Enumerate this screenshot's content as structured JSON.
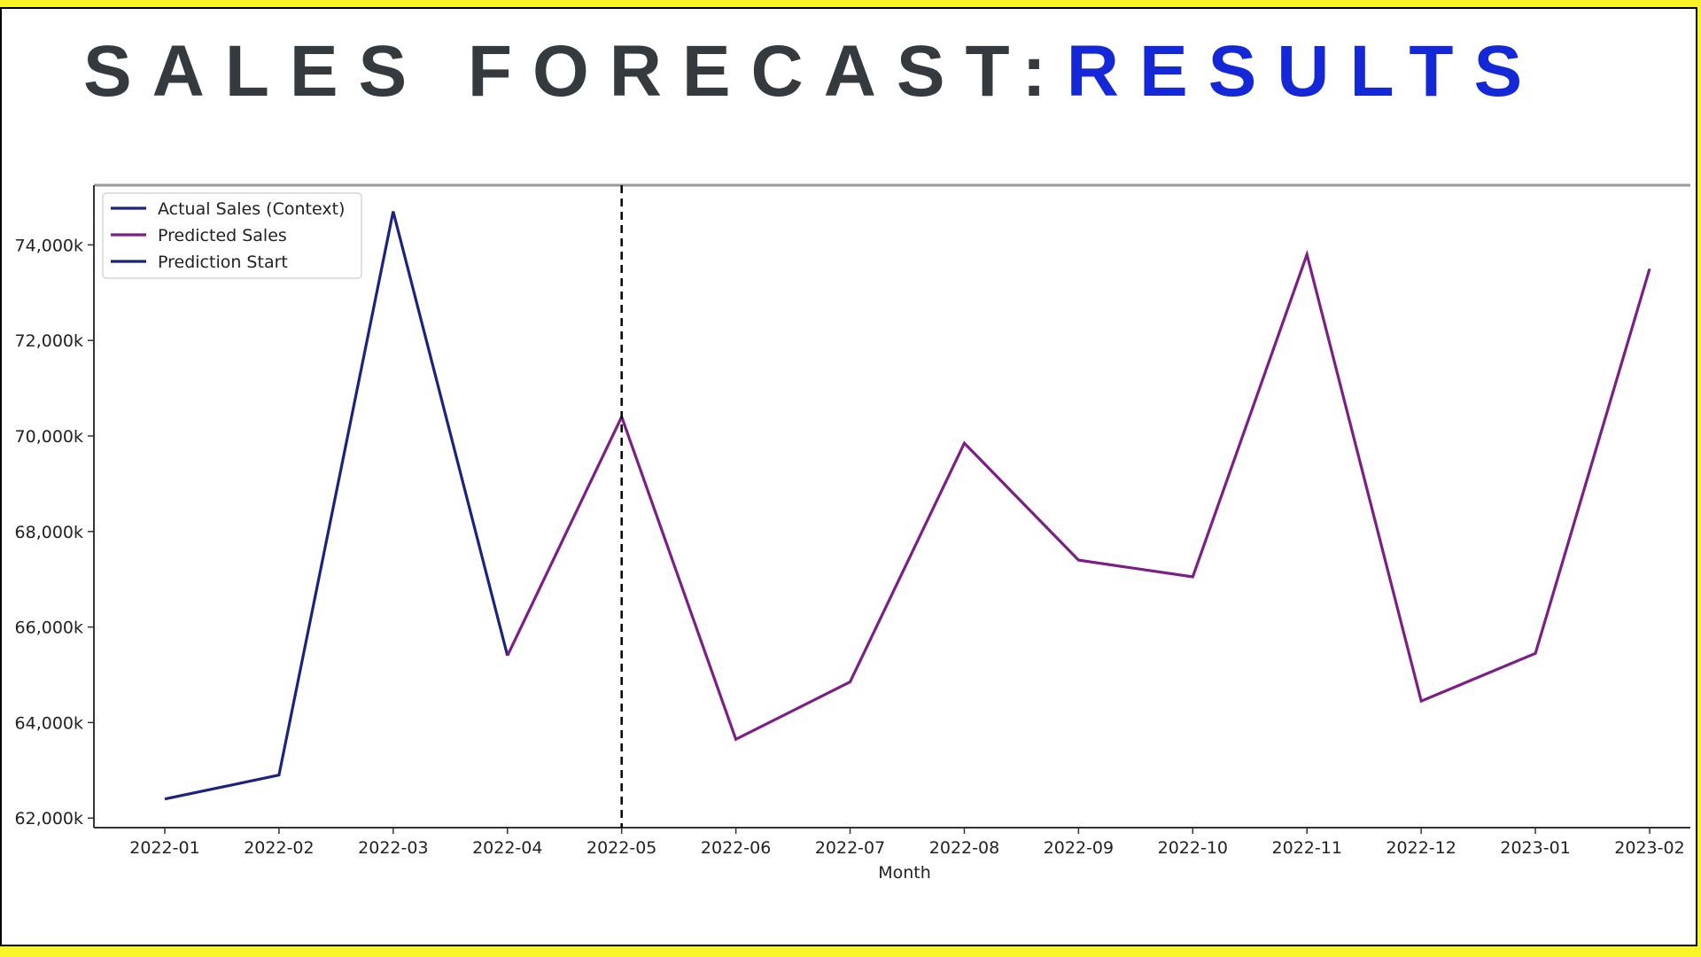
{
  "header": {
    "title_main": "SALES FORECAST:",
    "title_accent": "RESULTS"
  },
  "colors": {
    "page_background": "#f8f428",
    "title_main": "#353a3e",
    "title_accent": "#1428d8",
    "actual_series": "#1a237e",
    "predicted_series": "#7b1f86",
    "prediction_start_line": "#000000"
  },
  "chart_data": {
    "type": "line",
    "title": "",
    "xlabel": "Month",
    "ylabel": "",
    "ylim": [
      61800,
      75250
    ],
    "y_ticks": [
      62000,
      64000,
      66000,
      68000,
      70000,
      72000,
      74000
    ],
    "y_tick_labels": [
      "62,000k",
      "64,000k",
      "66,000k",
      "68,000k",
      "70,000k",
      "72,000k",
      "74,000k"
    ],
    "x": [
      "2022-01",
      "2022-02",
      "2022-03",
      "2022-04",
      "2022-05",
      "2022-06",
      "2022-07",
      "2022-08",
      "2022-09",
      "2022-10",
      "2022-11",
      "2022-12",
      "2023-01",
      "2023-02"
    ],
    "x_tick_labels": [
      "2022-01",
      "2022-02",
      "2022-03",
      "2022-04",
      "2022-05",
      "2022-06",
      "2022-07",
      "2022-08",
      "2022-09",
      "2022-10",
      "2022-11",
      "2022-12",
      "2023-01",
      "2023-02"
    ],
    "series": [
      {
        "name": "Actual Sales (Context)",
        "color": "#1a237e",
        "x": [
          "2022-01",
          "2022-02",
          "2022-03",
          "2022-04"
        ],
        "values": [
          62400,
          62900,
          74700,
          65400
        ]
      },
      {
        "name": "Predicted Sales",
        "color": "#7b1f86",
        "x": [
          "2022-04",
          "2022-05",
          "2022-06",
          "2022-07",
          "2022-08",
          "2022-09",
          "2022-10",
          "2022-11",
          "2022-12",
          "2023-01",
          "2023-02"
        ],
        "values": [
          65400,
          70400,
          63650,
          64850,
          69850,
          67400,
          67050,
          73800,
          64450,
          65450,
          73500
        ]
      }
    ],
    "vertical_line": {
      "name": "Prediction Start",
      "x": "2022-05",
      "style": "dashed",
      "color": "#000000"
    },
    "legend": {
      "placement": "top-left",
      "entries": [
        "Actual Sales (Context)",
        "Predicted Sales",
        "Prediction Start"
      ]
    },
    "grid": false
  }
}
